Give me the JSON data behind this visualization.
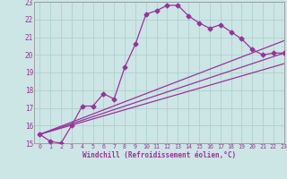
{
  "line1_x": [
    0,
    1,
    2,
    3,
    4,
    5,
    6,
    7,
    8,
    9,
    10,
    11,
    12,
    13,
    14,
    15,
    16,
    17,
    18,
    19,
    20,
    21,
    22,
    23
  ],
  "line1_y": [
    15.5,
    15.1,
    15.0,
    16.0,
    17.1,
    17.1,
    17.8,
    17.5,
    19.3,
    20.6,
    22.3,
    22.5,
    22.8,
    22.8,
    22.2,
    21.8,
    21.5,
    21.7,
    21.3,
    20.9,
    20.3,
    20.0,
    20.1,
    20.1
  ],
  "line2_x": [
    0,
    23
  ],
  "line2_y": [
    15.5,
    20.1
  ],
  "line3_x": [
    0,
    23
  ],
  "line3_y": [
    15.5,
    19.5
  ],
  "line4_x": [
    0,
    23
  ],
  "line4_y": [
    15.5,
    20.8
  ],
  "line_color": "#993399",
  "bg_color": "#cce5e5",
  "grid_color": "#aacccc",
  "xlabel": "Windchill (Refroidissement éolien,°C)",
  "xlim": [
    -0.5,
    23
  ],
  "ylim": [
    15,
    23
  ],
  "yticks": [
    15,
    16,
    17,
    18,
    19,
    20,
    21,
    22,
    23
  ],
  "xticks": [
    0,
    1,
    2,
    3,
    4,
    5,
    6,
    7,
    8,
    9,
    10,
    11,
    12,
    13,
    14,
    15,
    16,
    17,
    18,
    19,
    20,
    21,
    22,
    23
  ],
  "marker": "D",
  "marker_size": 2.5,
  "linewidth": 0.9
}
